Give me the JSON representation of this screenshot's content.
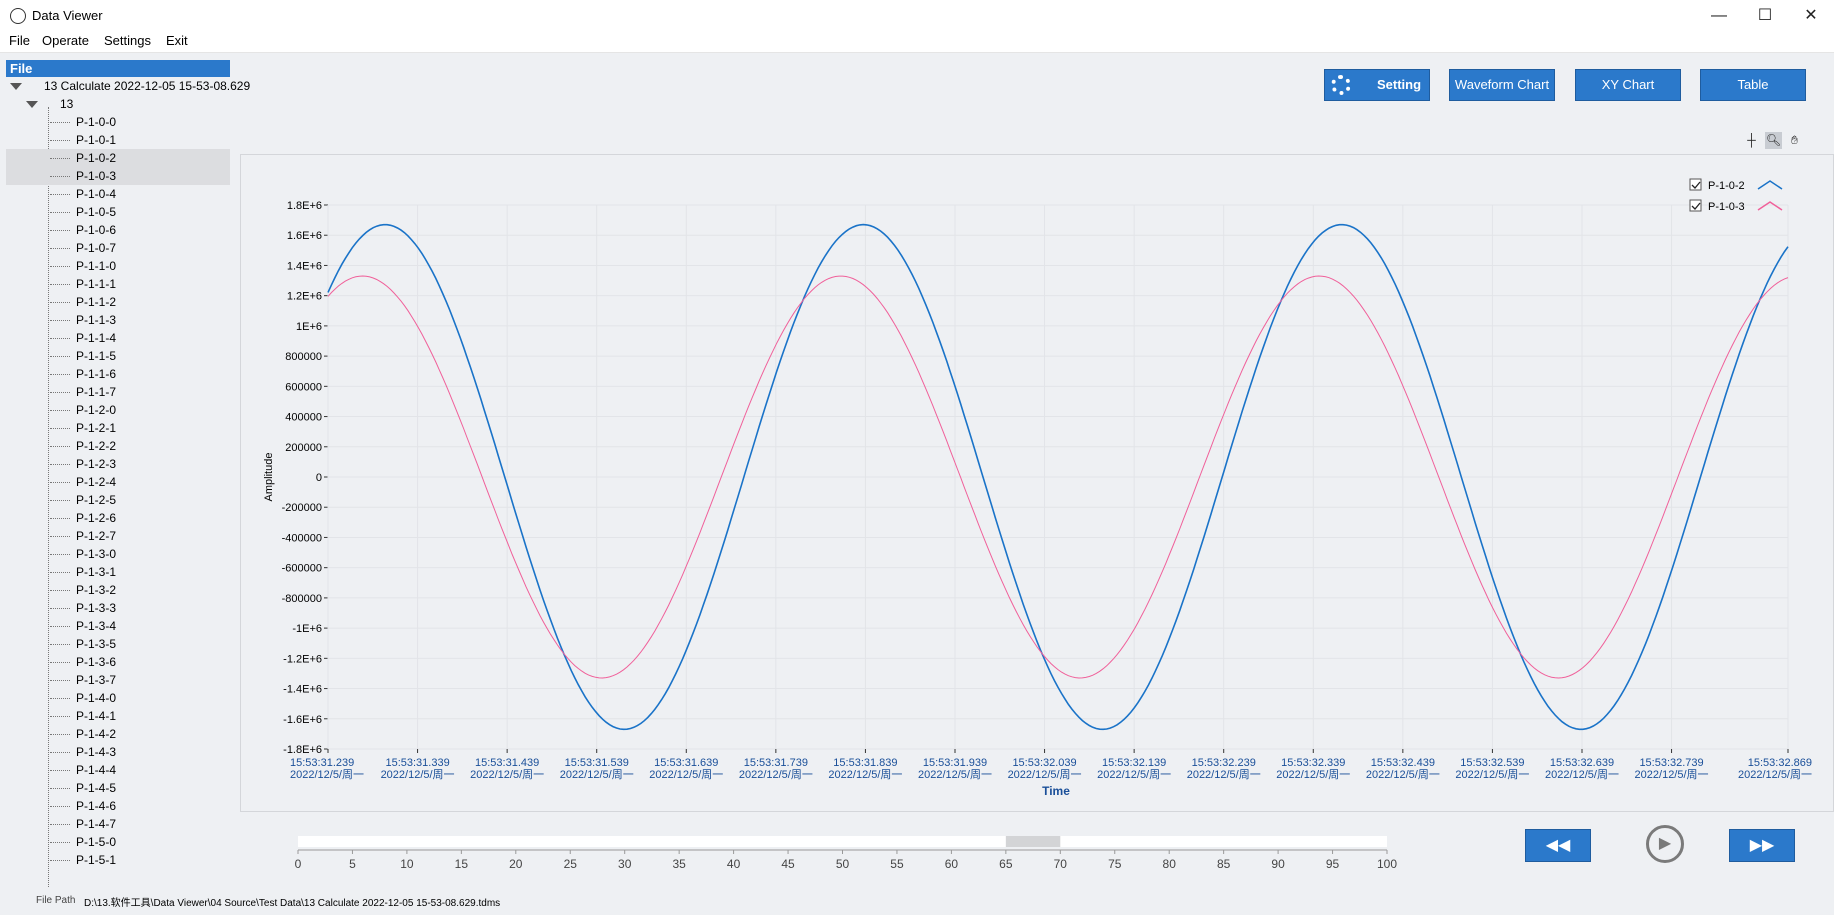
{
  "window": {
    "title": "Data Viewer",
    "minimize": "—",
    "maximize": "☐",
    "close": "✕"
  },
  "menu": [
    "File",
    "Operate",
    "Settings",
    "Exit"
  ],
  "sidebar": {
    "header": "File",
    "root_label": "13 Calculate 2022-12-05 15-53-08.629",
    "group_label": "13",
    "items": [
      "P-1-0-0",
      "P-1-0-1",
      "P-1-0-2",
      "P-1-0-3",
      "P-1-0-4",
      "P-1-0-5",
      "P-1-0-6",
      "P-1-0-7",
      "P-1-1-0",
      "P-1-1-1",
      "P-1-1-2",
      "P-1-1-3",
      "P-1-1-4",
      "P-1-1-5",
      "P-1-1-6",
      "P-1-1-7",
      "P-1-2-0",
      "P-1-2-1",
      "P-1-2-2",
      "P-1-2-3",
      "P-1-2-4",
      "P-1-2-5",
      "P-1-2-6",
      "P-1-2-7",
      "P-1-3-0",
      "P-1-3-1",
      "P-1-3-2",
      "P-1-3-3",
      "P-1-3-4",
      "P-1-3-5",
      "P-1-3-6",
      "P-1-3-7",
      "P-1-4-0",
      "P-1-4-1",
      "P-1-4-2",
      "P-1-4-3",
      "P-1-4-4",
      "P-1-4-5",
      "P-1-4-6",
      "P-1-4-7",
      "P-1-5-0",
      "P-1-5-1"
    ],
    "selected": [
      "P-1-0-2",
      "P-1-0-3"
    ]
  },
  "toolbar": {
    "setting": "Setting",
    "waveform": "Waveform Chart",
    "xy": "XY Chart",
    "table": "Table"
  },
  "tools": [
    "crosshair-icon",
    "zoom-icon",
    "pan-hand-icon"
  ],
  "chart_data": {
    "type": "line",
    "xlabel": "Time",
    "ylabel": "Amplitude",
    "ylim": [
      -1800000,
      1800000
    ],
    "yticks": [
      "1.8E+6",
      "1.6E+6",
      "1.4E+6",
      "1.2E+6",
      "1E+6",
      "800000",
      "600000",
      "400000",
      "200000",
      "0",
      "-200000",
      "-400000",
      "-600000",
      "-800000",
      "-1E+6",
      "-1.2E+6",
      "-1.4E+6",
      "-1.6E+6",
      "-1.8E+6"
    ],
    "xticks": [
      "15:53:31.239",
      "15:53:31.339",
      "15:53:31.439",
      "15:53:31.539",
      "15:53:31.639",
      "15:53:31.739",
      "15:53:31.839",
      "15:53:31.939",
      "15:53:32.039",
      "15:53:32.139",
      "15:53:32.239",
      "15:53:32.339",
      "15:53:32.439",
      "15:53:32.539",
      "15:53:32.639",
      "15:53:32.739",
      "15:53:32.869"
    ],
    "xtick_date": "2022/12/5/周一",
    "x_start": "15:53:31.239",
    "x_end": "15:53:32.869",
    "grid": true,
    "legend_position": "top-right",
    "series": [
      {
        "name": "P-1-0-2",
        "color": "#1a73c8",
        "amplitude": 1670000,
        "period_ms": 534,
        "phase_deg": 47
      },
      {
        "name": "P-1-0-3",
        "color": "#f0609a",
        "amplitude": 1330000,
        "period_ms": 534,
        "phase_deg": 64
      }
    ]
  },
  "slider": {
    "ticks": [
      "0",
      "5",
      "10",
      "15",
      "20",
      "25",
      "30",
      "35",
      "40",
      "45",
      "50",
      "55",
      "60",
      "65",
      "70",
      "75",
      "80",
      "85",
      "90",
      "95",
      "100"
    ],
    "thumb_start": 65,
    "thumb_end": 70
  },
  "controls": {
    "rewind": "◀◀",
    "play": "▶",
    "forward": "▶▶"
  },
  "footer": {
    "label": "File Path",
    "path": "D:\\13.软件工具\\Data Viewer\\04 Source\\Test Data\\13 Calculate 2022-12-05 15-53-08.629.tdms"
  }
}
